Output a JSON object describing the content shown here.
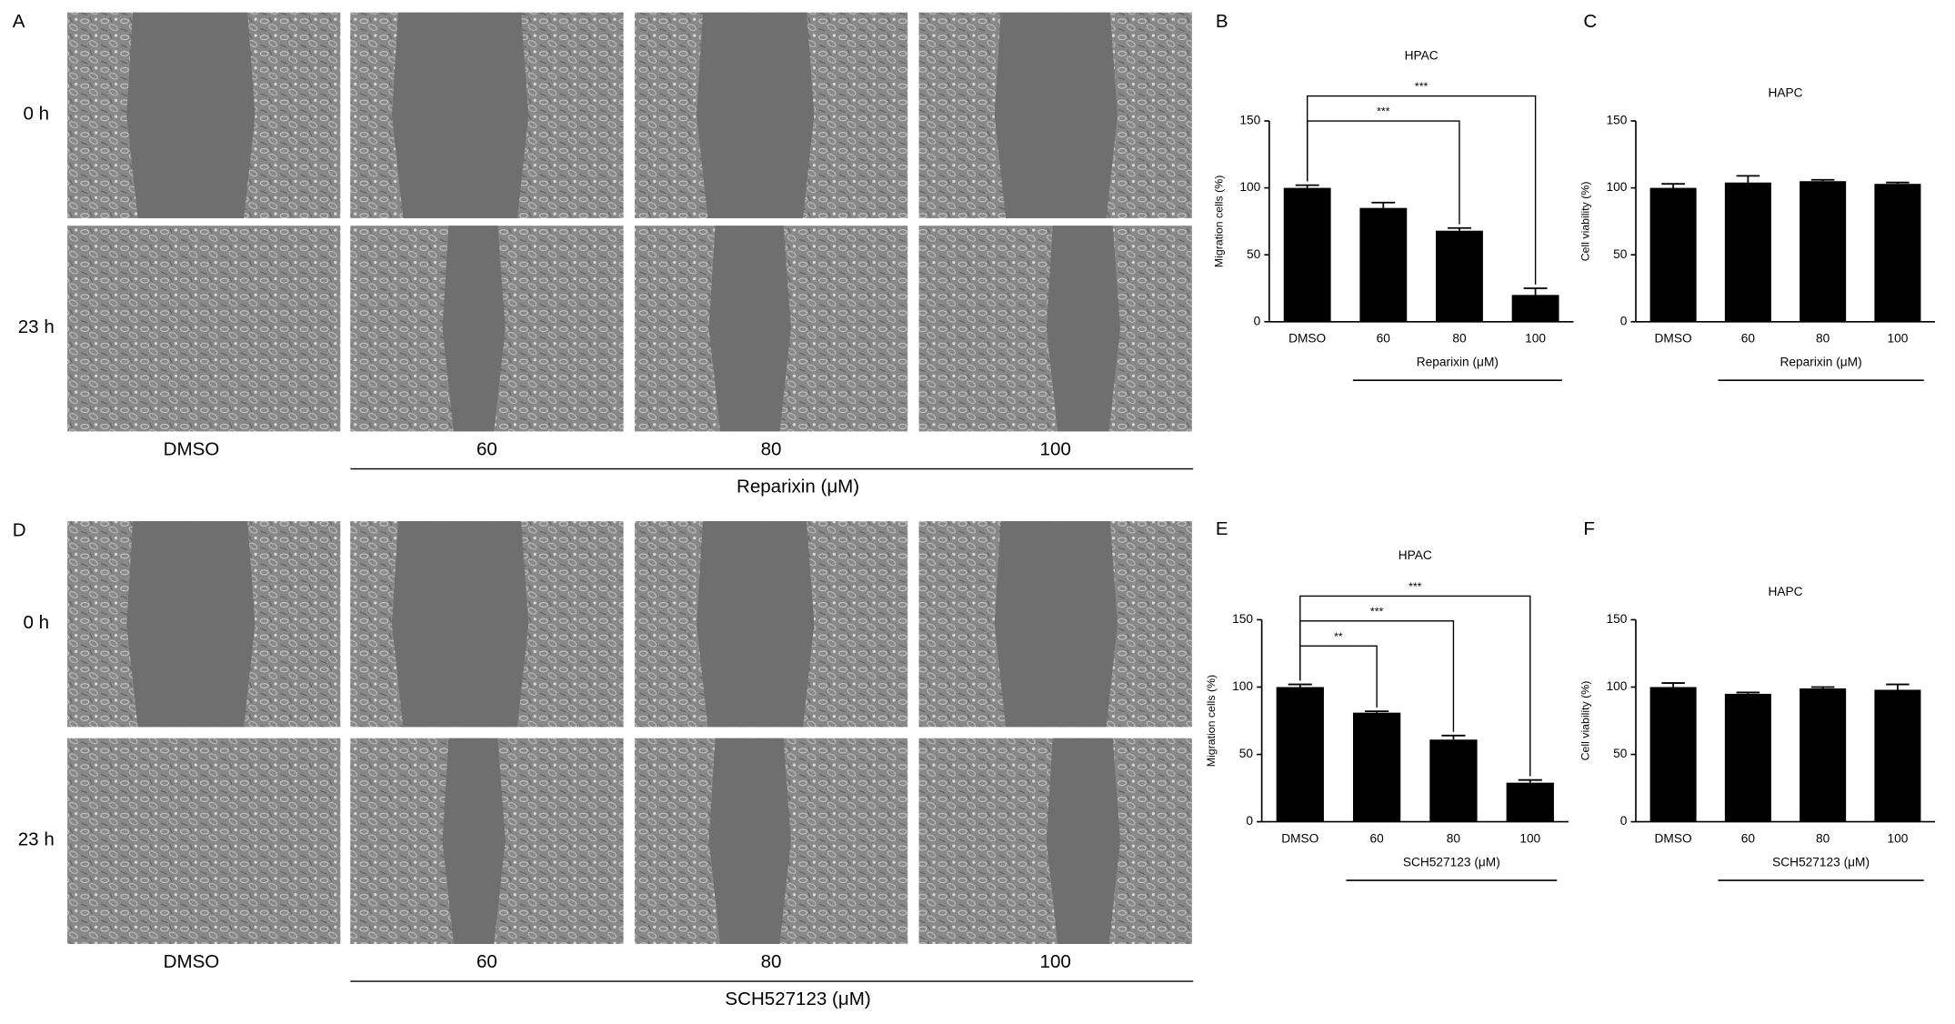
{
  "panels": [
    {
      "letter": "A",
      "rows": [
        "0 h",
        "23 h"
      ],
      "columns": [
        "DMSO",
        "60",
        "80",
        "100"
      ],
      "group_label": "Reparixin (μM)"
    },
    {
      "letter": "D",
      "rows": [
        "0 h",
        "23 h"
      ],
      "columns": [
        "DMSO",
        "60",
        "80",
        "100"
      ],
      "group_label": "SCH527123 (μM)"
    }
  ],
  "chart_data": [
    {
      "type": "bar",
      "panel": "B",
      "title": "HPAC",
      "y_label": "Migration cells (%)",
      "categories": [
        "DMSO",
        "60",
        "80",
        "100"
      ],
      "values": [
        100,
        85,
        68,
        20
      ],
      "errors": [
        2,
        4,
        2,
        5
      ],
      "color": "#000000",
      "ylim": [
        0,
        150
      ],
      "yticks": [
        0,
        50,
        100,
        150
      ],
      "x_group": {
        "label": "Reparixin (μM)",
        "categories": [
          "60",
          "80",
          "100"
        ]
      },
      "comparisons": [
        {
          "groups": [
            "DMSO",
            "80"
          ],
          "label": "***"
        },
        {
          "groups": [
            "DMSO",
            "100"
          ],
          "label": "***"
        }
      ]
    },
    {
      "type": "bar",
      "panel": "C",
      "title": "HAPC",
      "y_label": "Cell viability (%)",
      "categories": [
        "DMSO",
        "60",
        "80",
        "100"
      ],
      "values": [
        100,
        104,
        105,
        103
      ],
      "errors": [
        3,
        5,
        1,
        1
      ],
      "color": "#000000",
      "ylim": [
        0,
        150
      ],
      "yticks": [
        0,
        50,
        100,
        150
      ],
      "x_group": {
        "label": "Reparixin (μM)",
        "categories": [
          "60",
          "80",
          "100"
        ]
      }
    },
    {
      "type": "bar",
      "panel": "E",
      "title": "HPAC",
      "y_label": "Migration cells (%)",
      "categories": [
        "DMSO",
        "60",
        "80",
        "100"
      ],
      "values": [
        100,
        81,
        61,
        29
      ],
      "errors": [
        2,
        1,
        3,
        2
      ],
      "color": "#000000",
      "ylim": [
        0,
        150
      ],
      "yticks": [
        0,
        50,
        100,
        150
      ],
      "x_group": {
        "label": "SCH527123 (μM)",
        "categories": [
          "60",
          "80",
          "100"
        ]
      },
      "comparisons": [
        {
          "groups": [
            "DMSO",
            "60"
          ],
          "label": "**"
        },
        {
          "groups": [
            "DMSO",
            "80"
          ],
          "label": "***"
        },
        {
          "groups": [
            "DMSO",
            "100"
          ],
          "label": "***"
        }
      ]
    },
    {
      "type": "bar",
      "panel": "F",
      "title": "HAPC",
      "y_label": "Cell viability (%)",
      "categories": [
        "DMSO",
        "60",
        "80",
        "100"
      ],
      "values": [
        100,
        95,
        99,
        98
      ],
      "errors": [
        3,
        1,
        1,
        4
      ],
      "color": "#000000",
      "ylim": [
        0,
        150
      ],
      "yticks": [
        0,
        50,
        100,
        150
      ],
      "x_group": {
        "label": "SCH527123 (μM)",
        "categories": [
          "60",
          "80",
          "100"
        ]
      }
    }
  ]
}
